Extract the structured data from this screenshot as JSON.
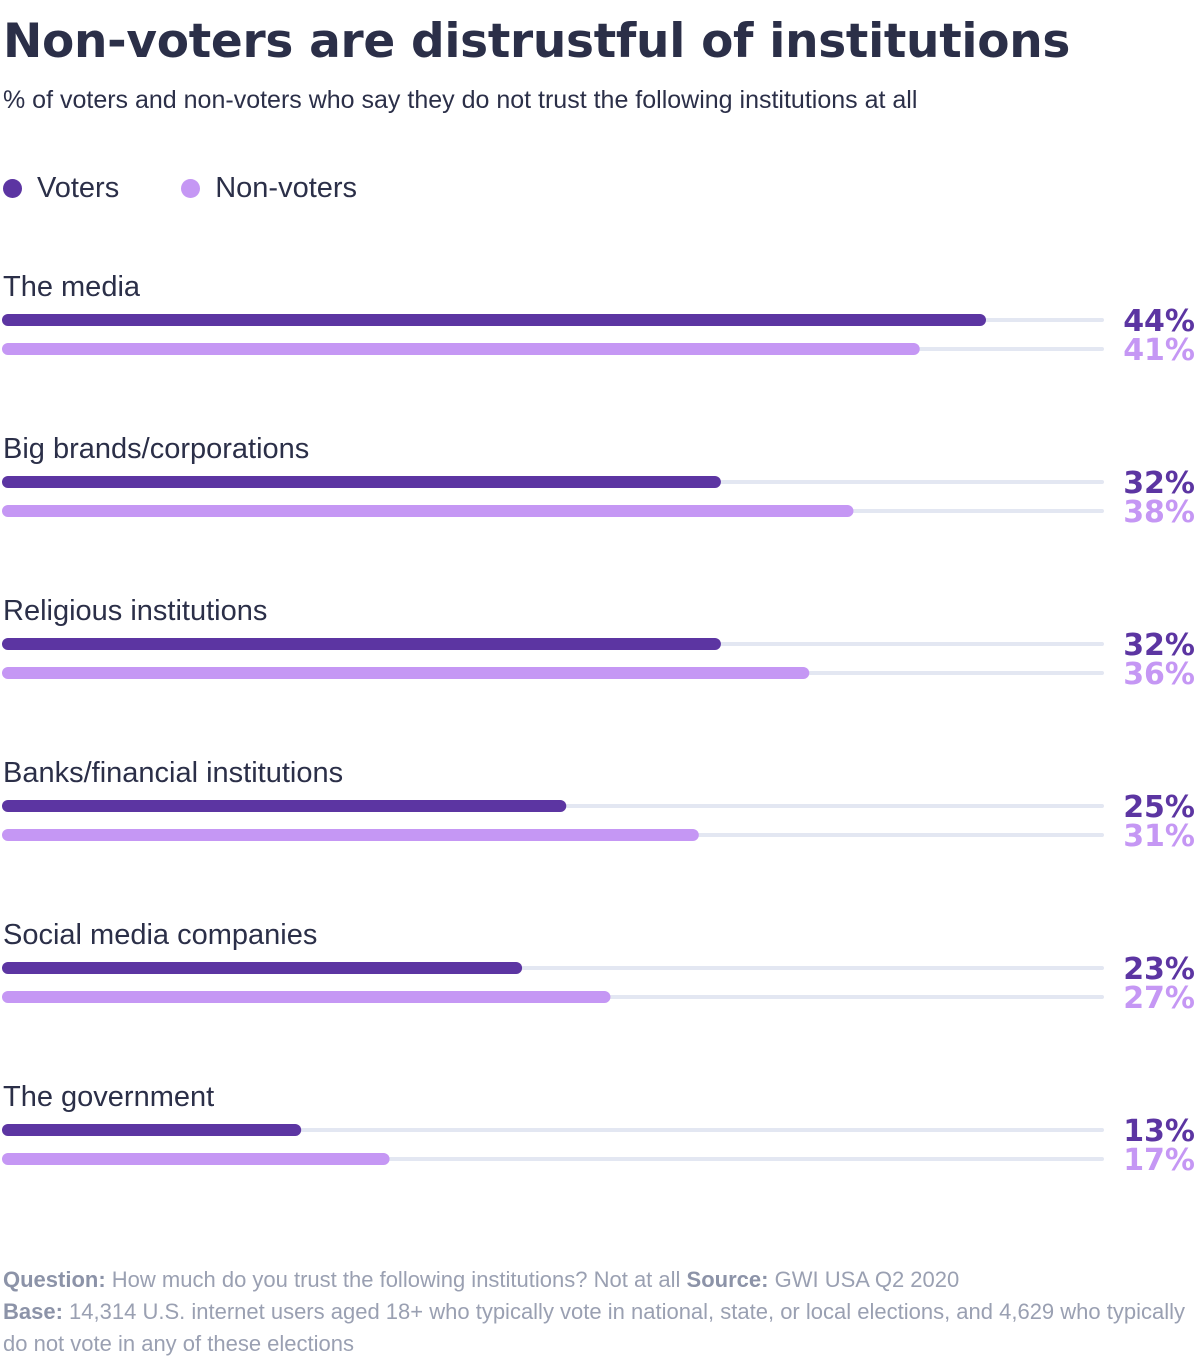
{
  "title": "Non-voters are distrustful of institutions",
  "subtitle": "% of voters and non-voters who say they do not trust the following institutions at all",
  "footer": {
    "question_label": "Question:",
    "question_text": "How much do you trust the following institutions? Not at all",
    "source_label": "Source:",
    "source_text": "GWI USA Q2 2020",
    "base_label": "Base:",
    "base_text": "14,314 U.S. internet users aged 18+ who typically vote in national, state, or local elections, and 4,629 who typically do not vote in any of these elections"
  },
  "colors": {
    "voters": "#5c35a2",
    "non_voters": "#c597f4",
    "track": "#e3e7f2"
  },
  "chart_data": {
    "type": "bar",
    "orientation": "horizontal",
    "categories": [
      "The media",
      "Big brands/corporations",
      "Religious institutions",
      "Banks/financial institutions",
      "Social media companies",
      "The government"
    ],
    "series": [
      {
        "name": "Voters",
        "values": [
          44,
          32,
          32,
          25,
          23,
          13
        ],
        "labels": [
          "44%",
          "32%",
          "32%",
          "25%",
          "23%",
          "13%"
        ]
      },
      {
        "name": "Non-voters",
        "values": [
          41,
          38,
          36,
          31,
          27,
          17
        ],
        "labels": [
          "41%",
          "38%",
          "36%",
          "31%",
          "27%",
          "17%"
        ]
      }
    ],
    "xlim": [
      0,
      49
    ],
    "legend": "top-left",
    "grid": false
  }
}
